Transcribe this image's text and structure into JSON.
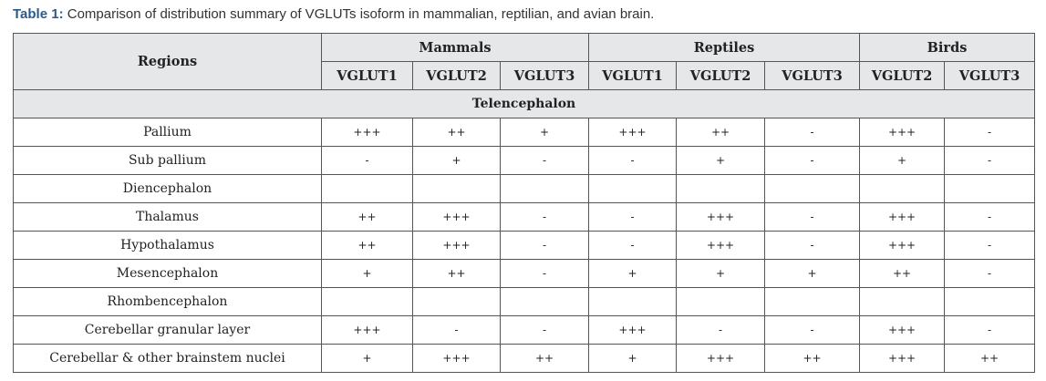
{
  "caption": {
    "label": "Table 1:",
    "text": "Comparison of distribution summary of VGLUTs isoform in mammalian, reptilian, and avian brain."
  },
  "table": {
    "corner": "Regions",
    "groups": [
      {
        "name": "Mammals",
        "columns": [
          "VGLUT1",
          "VGLUT2",
          "VGLUT3"
        ]
      },
      {
        "name": "Reptiles",
        "columns": [
          "VGLUT1",
          "VGLUT2",
          "VGLUT3"
        ]
      },
      {
        "name": "Birds",
        "columns": [
          "VGLUT2",
          "VGLUT3"
        ]
      }
    ],
    "section": "Telencephalon",
    "rows": [
      {
        "region": "Pallium",
        "cells": [
          "+++",
          "++",
          "+",
          "+++",
          "++",
          "-",
          "+++",
          "-"
        ]
      },
      {
        "region": "Sub pallium",
        "cells": [
          "-",
          "+",
          "-",
          "-",
          "+",
          "-",
          "+",
          "-"
        ]
      },
      {
        "region": "Diencephalon"
      },
      {
        "region": "Thalamus",
        "cells": [
          "++",
          "+++",
          "-",
          "-",
          "+++",
          "-",
          "+++",
          "-"
        ]
      },
      {
        "region": "Hypothalamus",
        "cells": [
          "++",
          "+++",
          "-",
          "-",
          "+++",
          "-",
          "+++",
          "-"
        ]
      },
      {
        "region": "Mesencephalon",
        "cells": [
          "+",
          "++",
          "-",
          "+",
          "+",
          "+",
          "++",
          "-"
        ]
      },
      {
        "region": "Rhombencephalon"
      },
      {
        "region": "Cerebellar granular layer",
        "cells": [
          "+++",
          "-",
          "-",
          "+++",
          "-",
          "-",
          "+++",
          "-"
        ]
      },
      {
        "region": "Cerebellar & other brainstem nuclei",
        "cells": [
          "+",
          "+++",
          "++",
          "+",
          "+++",
          "++",
          "+++",
          "++"
        ]
      }
    ]
  }
}
